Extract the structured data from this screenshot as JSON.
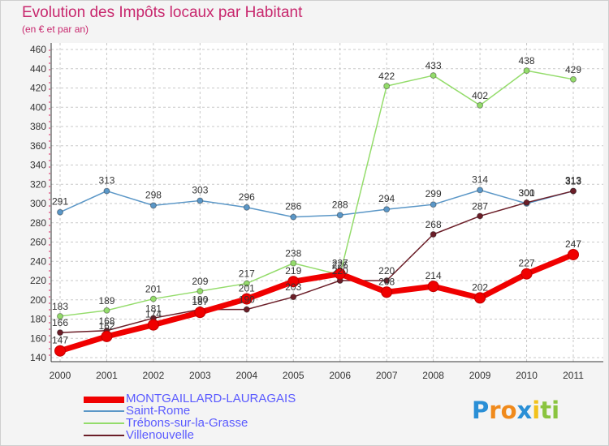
{
  "header": {
    "title": "Evolution des Impôts locaux par Habitant",
    "subtitle": "(en € et par an)"
  },
  "colors": {
    "title": "#c8286e",
    "legend_text": "#5a5aff",
    "grid": "#c9c9c9"
  },
  "chart_data": {
    "type": "line",
    "title": "Evolution des Impôts locaux par Habitant",
    "subtitle": "(en € et par an)",
    "xlabel": "",
    "ylabel": "",
    "ylim": [
      140,
      460
    ],
    "yticks": [
      140,
      160,
      180,
      200,
      220,
      240,
      260,
      280,
      300,
      320,
      340,
      360,
      380,
      400,
      420,
      440,
      460
    ],
    "grid": true,
    "legend_position": "bottom-left",
    "x": [
      "2000",
      "2001",
      "2002",
      "2003",
      "2004",
      "2005",
      "2006",
      "2007",
      "2008",
      "2009",
      "2010",
      "2011"
    ],
    "series": [
      {
        "name": "Saint-Rome",
        "color": "#5b97c7",
        "values": [
          291,
          313,
          298,
          303,
          296,
          286,
          288,
          294,
          299,
          314,
          300,
          313
        ]
      },
      {
        "name": "Trébons-sur-la-Grasse",
        "color": "#94dc6b",
        "values": [
          183,
          189,
          201,
          209,
          217,
          238,
          226,
          422,
          433,
          402,
          438,
          429
        ]
      },
      {
        "name": "Villenouvelle",
        "color": "#6b1e28",
        "values": [
          166,
          168,
          181,
          190,
          190,
          203,
          220,
          220,
          268,
          287,
          301,
          313
        ]
      },
      {
        "name": "MONTGAILLARD-LAURAGAIS",
        "color": "#f00000",
        "values": [
          147,
          162,
          174,
          187,
          201,
          219,
          227,
          208,
          214,
          202,
          227,
          247
        ]
      }
    ]
  },
  "legend": {
    "items": [
      {
        "label": "MONTGAILLARD-LAURAGAIS",
        "color": "#f00000"
      },
      {
        "label": "Saint-Rome",
        "color": "#5b97c7"
      },
      {
        "label": "Trébons-sur-la-Grasse",
        "color": "#94dc6b"
      },
      {
        "label": "Villenouvelle",
        "color": "#6b1e28"
      }
    ]
  },
  "logo": {
    "letters": [
      "P",
      "r",
      "o",
      "x",
      "i",
      "t",
      "i"
    ],
    "colors": [
      "#2a8fd6",
      "#f08a1c",
      "#f08a1c",
      "#2a8fd6",
      "#f2c21b",
      "#8ac43f",
      "#8ac43f"
    ]
  }
}
